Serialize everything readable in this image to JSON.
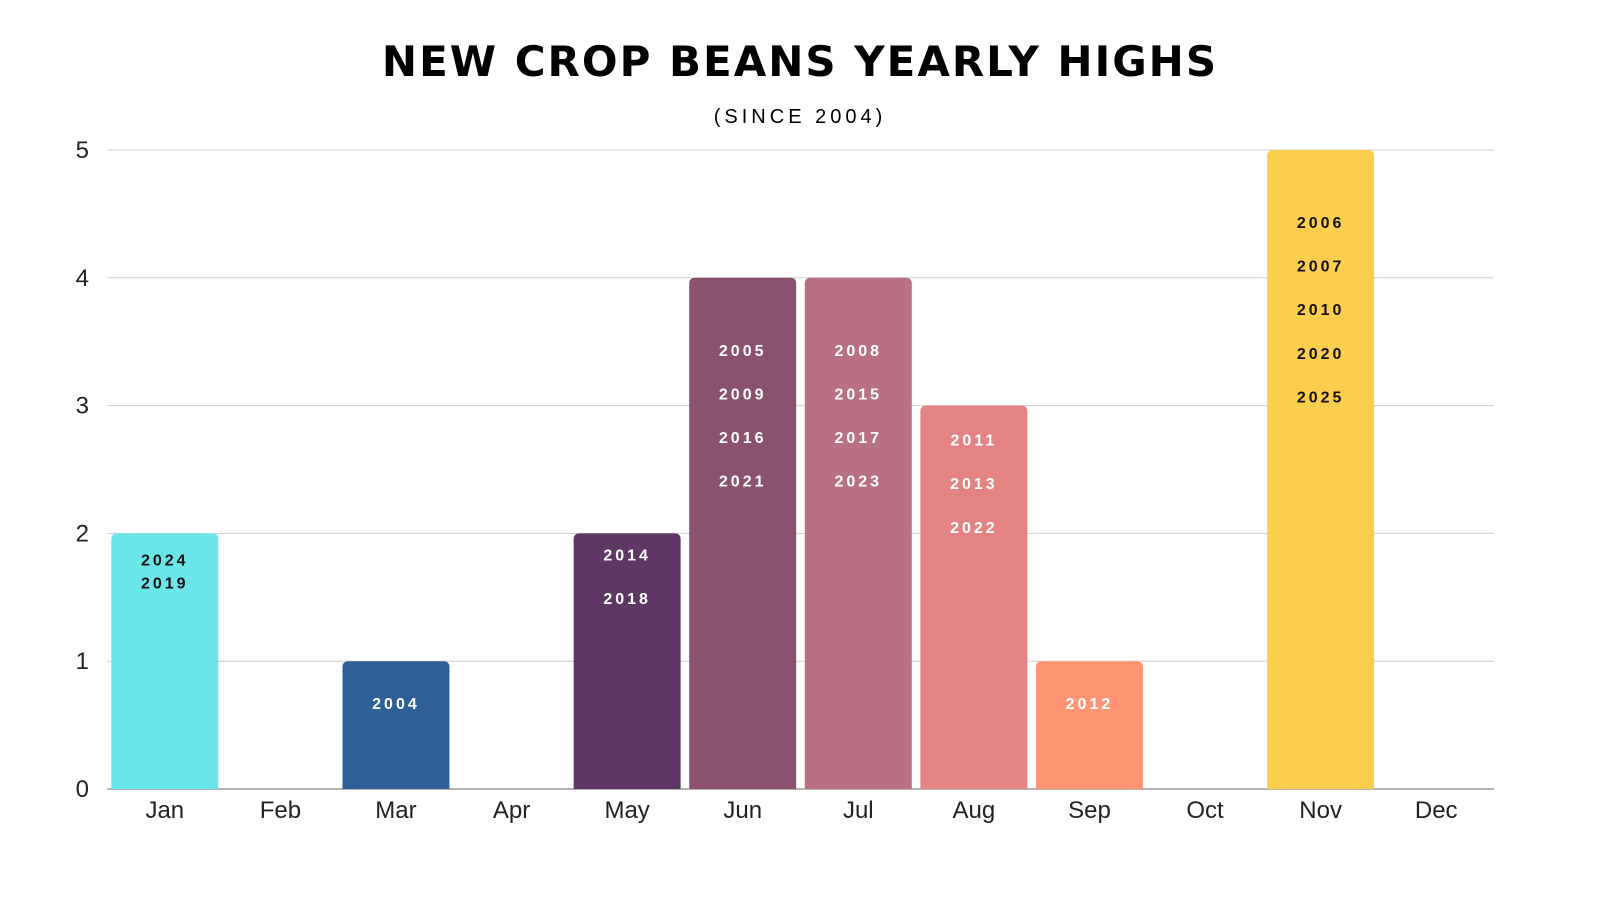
{
  "chart_data": {
    "type": "bar",
    "title": "NEW CROP BEANS YEARLY HIGHS",
    "subtitle": "(SINCE 2004)",
    "xlabel": "",
    "ylabel": "",
    "ylim": [
      0,
      5
    ],
    "yticks": [
      "0",
      "1",
      "2",
      "3",
      "4",
      "5"
    ],
    "grid": true,
    "categories": [
      "Jan",
      "Feb",
      "Mar",
      "Apr",
      "May",
      "Jun",
      "Jul",
      "Aug",
      "Sep",
      "Oct",
      "Nov",
      "Dec"
    ],
    "values": [
      2,
      0,
      1,
      0,
      2,
      4,
      4,
      3,
      1,
      0,
      5,
      0
    ],
    "colors": [
      "#6ae6e8",
      "",
      "#2e5f96",
      "",
      "#5e3764",
      "#8a526f",
      "#b87183",
      "#e38384",
      "#ff9475",
      "",
      "#fcce4d",
      ""
    ],
    "label_colors": [
      "#111111",
      "",
      "#ffffff",
      "",
      "#ffffff",
      "#ffffff",
      "#ffffff",
      "#ffffff",
      "#ffffff",
      "",
      "#111111",
      ""
    ],
    "bar_labels": [
      [
        "2024",
        "2019"
      ],
      [],
      [
        "2004"
      ],
      [],
      [
        "2014",
        "2018"
      ],
      [
        "2005",
        "2009",
        "2016",
        "2021"
      ],
      [
        "2008",
        "2015",
        "2017",
        "2023"
      ],
      [
        "2011",
        "2013",
        "2022"
      ],
      [
        "2012"
      ],
      [],
      [
        "2006",
        "2007",
        "2010",
        "2020",
        "2025"
      ],
      []
    ]
  }
}
